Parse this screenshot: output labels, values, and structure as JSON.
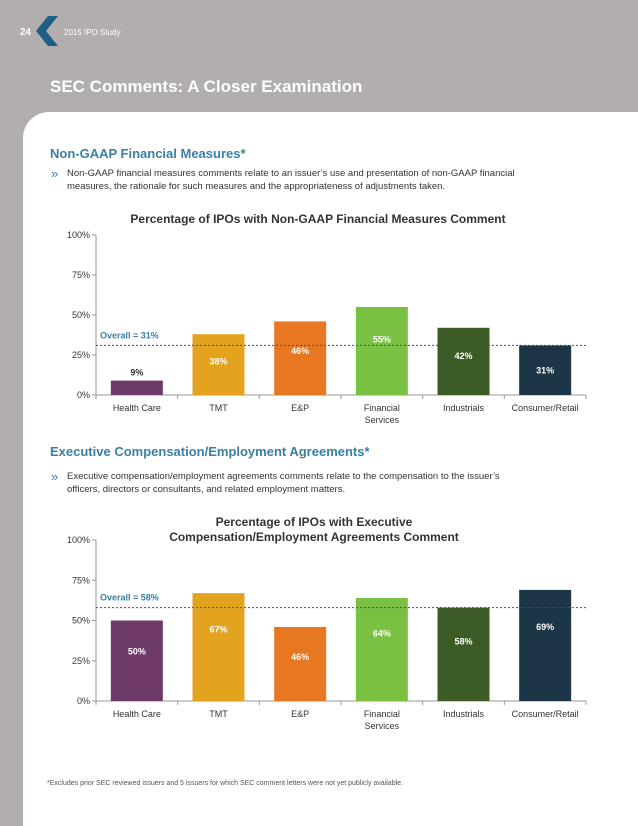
{
  "header": {
    "page_number": "24",
    "study_label": "2015 IPO Study"
  },
  "page_title": "SEC Comments: A Closer Examination",
  "colors": {
    "accent": "#3b7fa4",
    "chevron": "#1f5f86",
    "background": "#b3aeae"
  },
  "section1": {
    "title": "Non-GAAP Financial Measures*",
    "bullet_line1": "Non-GAAP financial measures comments relate to an issuer’s use and presentation of non-GAAP financial",
    "bullet_line2": "measures, the rationale for such measures and the appropriateness of adjustments taken."
  },
  "section2": {
    "title": "Executive Compensation/Employment Agreements*",
    "bullet_line1": "Executive compensation/employment agreements comments relate to the compensation to the issuer’s",
    "bullet_line2": "officers, directors or consultants, and related employment matters."
  },
  "footnote": "*Excludes prior SEC reviewed issuers and 5 issuers for which SEC comment letters were not yet publicly available.",
  "chart_data": [
    {
      "type": "bar",
      "title": "Percentage of IPOs with Non-GAAP Financial Measures Comment",
      "title_lines": [
        "Percentage of IPOs with Non-GAAP Financial Measures Comment"
      ],
      "categories": [
        "Health Care",
        "TMT",
        "E&P",
        "Financial Services",
        "Industrials",
        "Consumer/Retail"
      ],
      "category_lines": [
        [
          "Health Care"
        ],
        [
          "TMT"
        ],
        [
          "E&P"
        ],
        [
          "Financial",
          "Services"
        ],
        [
          "Industrials"
        ],
        [
          "Consumer/Retail"
        ]
      ],
      "values": [
        9,
        38,
        46,
        55,
        42,
        31
      ],
      "labels": [
        "9%",
        "38%",
        "46%",
        "55%",
        "42%",
        "31%"
      ],
      "colors": [
        "#6e3a68",
        "#e3a31f",
        "#e87722",
        "#7ac143",
        "#3d5b25",
        "#1c3547"
      ],
      "yticks": [
        0,
        25,
        50,
        75,
        100
      ],
      "ytick_labels": [
        "0%",
        "25%",
        "50%",
        "75%",
        "100%"
      ],
      "ylim": [
        0,
        100
      ],
      "overall_value": 31,
      "overall_label": "Overall = 31%",
      "xlabel": "",
      "ylabel": ""
    },
    {
      "type": "bar",
      "title": "Percentage of IPOs with Executive Compensation/Employment Agreements Comment",
      "title_lines": [
        "Percentage of IPOs with Executive",
        "Compensation/Employment Agreements Comment"
      ],
      "categories": [
        "Health Care",
        "TMT",
        "E&P",
        "Financial Services",
        "Industrials",
        "Consumer/Retail"
      ],
      "category_lines": [
        [
          "Health Care"
        ],
        [
          "TMT"
        ],
        [
          "E&P"
        ],
        [
          "Financial",
          "Services"
        ],
        [
          "Industrials"
        ],
        [
          "Consumer/Retail"
        ]
      ],
      "values": [
        50,
        67,
        46,
        64,
        58,
        69
      ],
      "labels": [
        "50%",
        "67%",
        "46%",
        "64%",
        "58%",
        "69%"
      ],
      "colors": [
        "#6e3a68",
        "#e3a31f",
        "#e87722",
        "#7ac143",
        "#3d5b25",
        "#1c3547"
      ],
      "yticks": [
        0,
        25,
        50,
        75,
        100
      ],
      "ytick_labels": [
        "0%",
        "25%",
        "50%",
        "75%",
        "100%"
      ],
      "ylim": [
        0,
        100
      ],
      "overall_value": 58,
      "overall_label": "Overall = 58%",
      "xlabel": "",
      "ylabel": ""
    }
  ]
}
